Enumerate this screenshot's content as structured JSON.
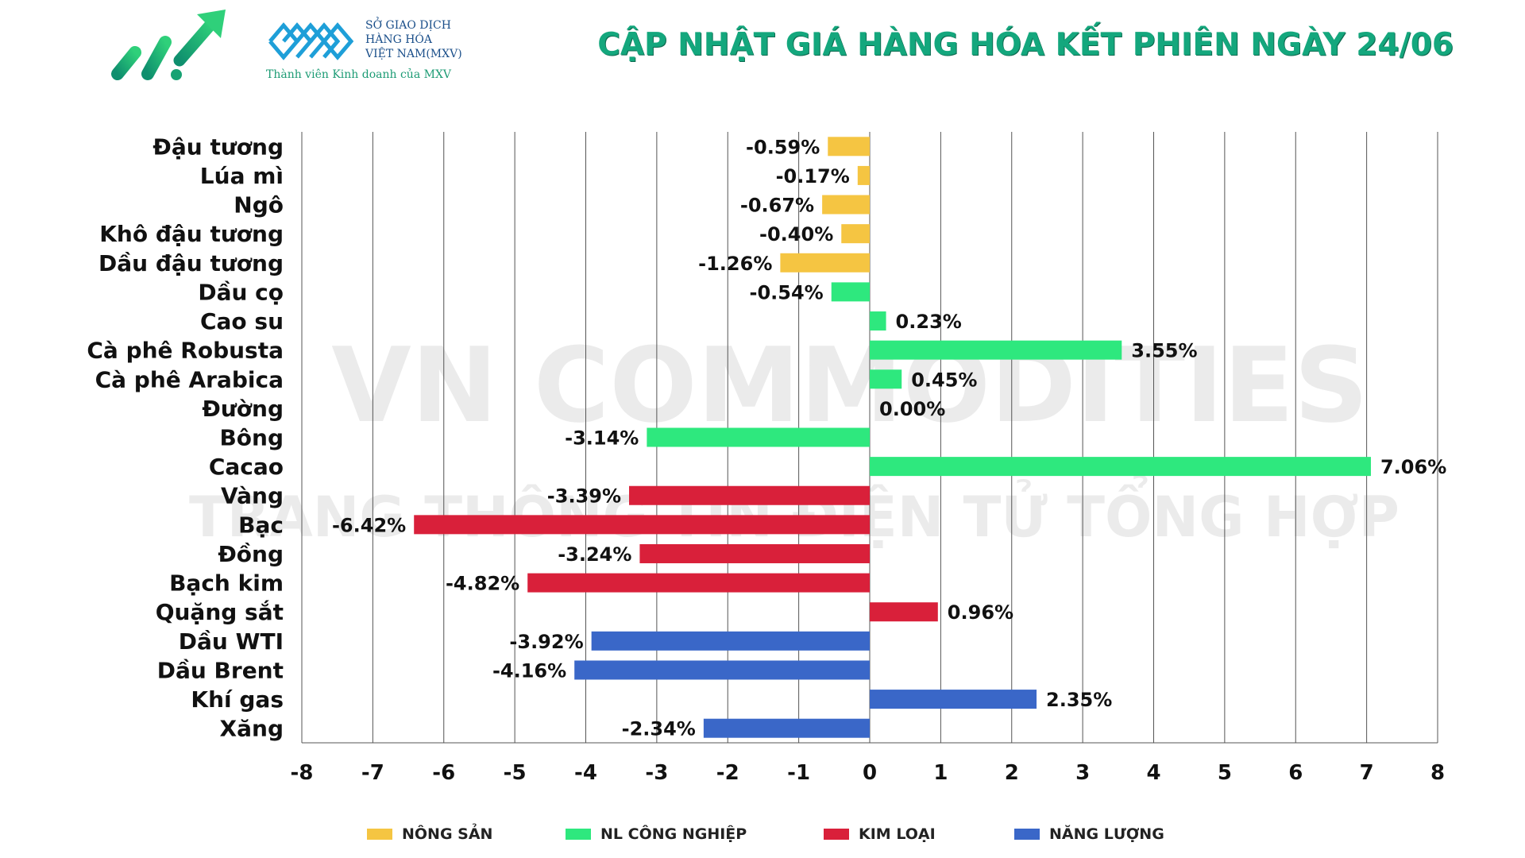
{
  "header": {
    "title": "CẬP NHẬT GIÁ HÀNG HÓA KẾT PHIÊN NGÀY 24/06",
    "mxv_line1": "SỞ GIAO DỊCH",
    "mxv_line2": "HÀNG HÓA",
    "mxv_line3": "VIỆT NAM(MXV)",
    "mxv_subtitle": "Thành viên Kinh doanh của MXV",
    "brand_color": "#14a77d"
  },
  "watermark": {
    "line1": "VN COMMODITIES",
    "line2": "TRANG THÔNG TIN ĐIỆN TỬ TỔNG HỢP"
  },
  "legend": [
    {
      "label": "NÔNG SẢN",
      "color": "#f5c542"
    },
    {
      "label": "NL CÔNG NGHIỆP",
      "color": "#2ee87e"
    },
    {
      "label": "KIM LOẠI",
      "color": "#d9203a"
    },
    {
      "label": "NĂNG LƯỢNG",
      "color": "#3a67c8"
    }
  ],
  "chart_data": {
    "type": "bar",
    "orientation": "horizontal",
    "title": "CẬP NHẬT GIÁ HÀNG HÓA KẾT PHIÊN NGÀY 24/06",
    "xlim": [
      -8,
      8
    ],
    "x_ticks": [
      "-8",
      "-7",
      "-6",
      "-5",
      "-4",
      "-3",
      "-2",
      "-1",
      "0",
      "1",
      "2",
      "3",
      "4",
      "5",
      "6",
      "7",
      "8"
    ],
    "grid": "vertical",
    "legend_position": "bottom",
    "categories": [
      "Đậu tương",
      "Lúa mì",
      "Ngô",
      "Khô đậu tương",
      "Dầu đậu tương",
      "Dầu cọ",
      "Cao su",
      "Cà phê Robusta",
      "Cà phê Arabica",
      "Đường",
      "Bông",
      "Cacao",
      "Vàng",
      "Bạc",
      "Đồng",
      "Bạch kim",
      "Quặng sắt",
      "Dầu WTI",
      "Dầu Brent",
      "Khí gas",
      "Xăng"
    ],
    "values": [
      -0.59,
      -0.17,
      -0.67,
      -0.4,
      -1.26,
      -0.54,
      0.23,
      3.55,
      0.45,
      0.0,
      -3.14,
      7.06,
      -3.39,
      -6.42,
      -3.24,
      -4.82,
      0.96,
      -3.92,
      -4.16,
      2.35,
      -2.34
    ],
    "value_labels": [
      "-0.59%",
      "-0.17%",
      "-0.67%",
      "-0.40%",
      "-1.26%",
      "-0.54%",
      "0.23%",
      "3.55%",
      "0.45%",
      "0.00%",
      "-3.14%",
      "7.06%",
      "-3.39%",
      "-6.42%",
      "-3.24%",
      "-4.82%",
      "0.96%",
      "-3.92%",
      "-4.16%",
      "2.35%",
      "-2.34%"
    ],
    "groups": [
      "NÔNG SẢN",
      "NÔNG SẢN",
      "NÔNG SẢN",
      "NÔNG SẢN",
      "NÔNG SẢN",
      "NL CÔNG NGHIỆP",
      "NL CÔNG NGHIỆP",
      "NL CÔNG NGHIỆP",
      "NL CÔNG NGHIỆP",
      "NL CÔNG NGHIỆP",
      "NL CÔNG NGHIỆP",
      "NL CÔNG NGHIỆP",
      "KIM LOẠI",
      "KIM LOẠI",
      "KIM LOẠI",
      "KIM LOẠI",
      "KIM LOẠI",
      "NĂNG LƯỢNG",
      "NĂNG LƯỢNG",
      "NĂNG LƯỢNG",
      "NĂNG LƯỢNG"
    ]
  }
}
